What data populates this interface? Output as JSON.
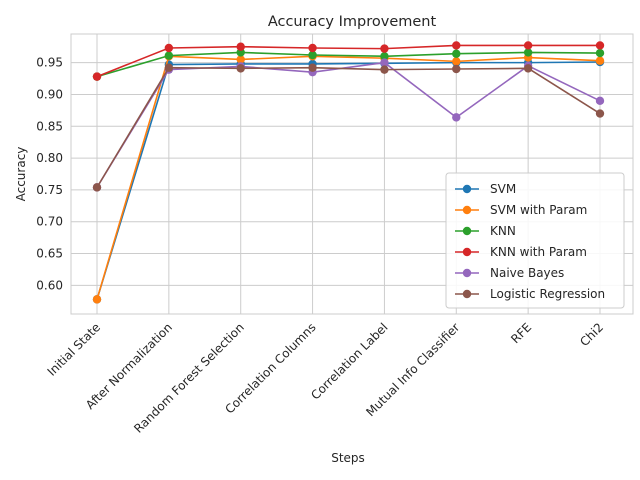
{
  "chart_data": {
    "type": "line",
    "title": "Accuracy Improvement",
    "xlabel": "Steps",
    "ylabel": "Accuracy",
    "categories": [
      "Initial State",
      "After Normalization",
      "Random Forest Selection",
      "Correlation Columns",
      "Correlation Label",
      "Mutual Info Classifier",
      "RFE",
      "Chi2"
    ],
    "ylim": [
      0.555,
      0.995
    ],
    "yticks": [
      "0.60",
      "0.65",
      "0.70",
      "0.75",
      "0.80",
      "0.85",
      "0.90",
      "0.95"
    ],
    "grid": true,
    "legend_position": "lower-right",
    "series": [
      {
        "name": "SVM",
        "color": "#1f77b4",
        "values": [
          0.578,
          0.947,
          0.948,
          0.948,
          0.949,
          0.95,
          0.95,
          0.951
        ]
      },
      {
        "name": "SVM with Param",
        "color": "#ff7f0e",
        "values": [
          0.578,
          0.96,
          0.955,
          0.96,
          0.957,
          0.952,
          0.958,
          0.953
        ]
      },
      {
        "name": "KNN",
        "color": "#2ca02c",
        "values": [
          0.928,
          0.961,
          0.966,
          0.962,
          0.96,
          0.964,
          0.966,
          0.965
        ]
      },
      {
        "name": "KNN with Param",
        "color": "#d62728",
        "values": [
          0.928,
          0.973,
          0.975,
          0.973,
          0.972,
          0.977,
          0.977,
          0.977
        ]
      },
      {
        "name": "Naive Bayes",
        "color": "#9467bd",
        "values": [
          0.754,
          0.939,
          0.944,
          0.935,
          0.95,
          0.864,
          0.945,
          0.89
        ]
      },
      {
        "name": "Logistic Regression",
        "color": "#8c564b",
        "values": [
          0.754,
          0.942,
          0.941,
          0.942,
          0.939,
          0.94,
          0.941,
          0.87
        ]
      }
    ]
  }
}
